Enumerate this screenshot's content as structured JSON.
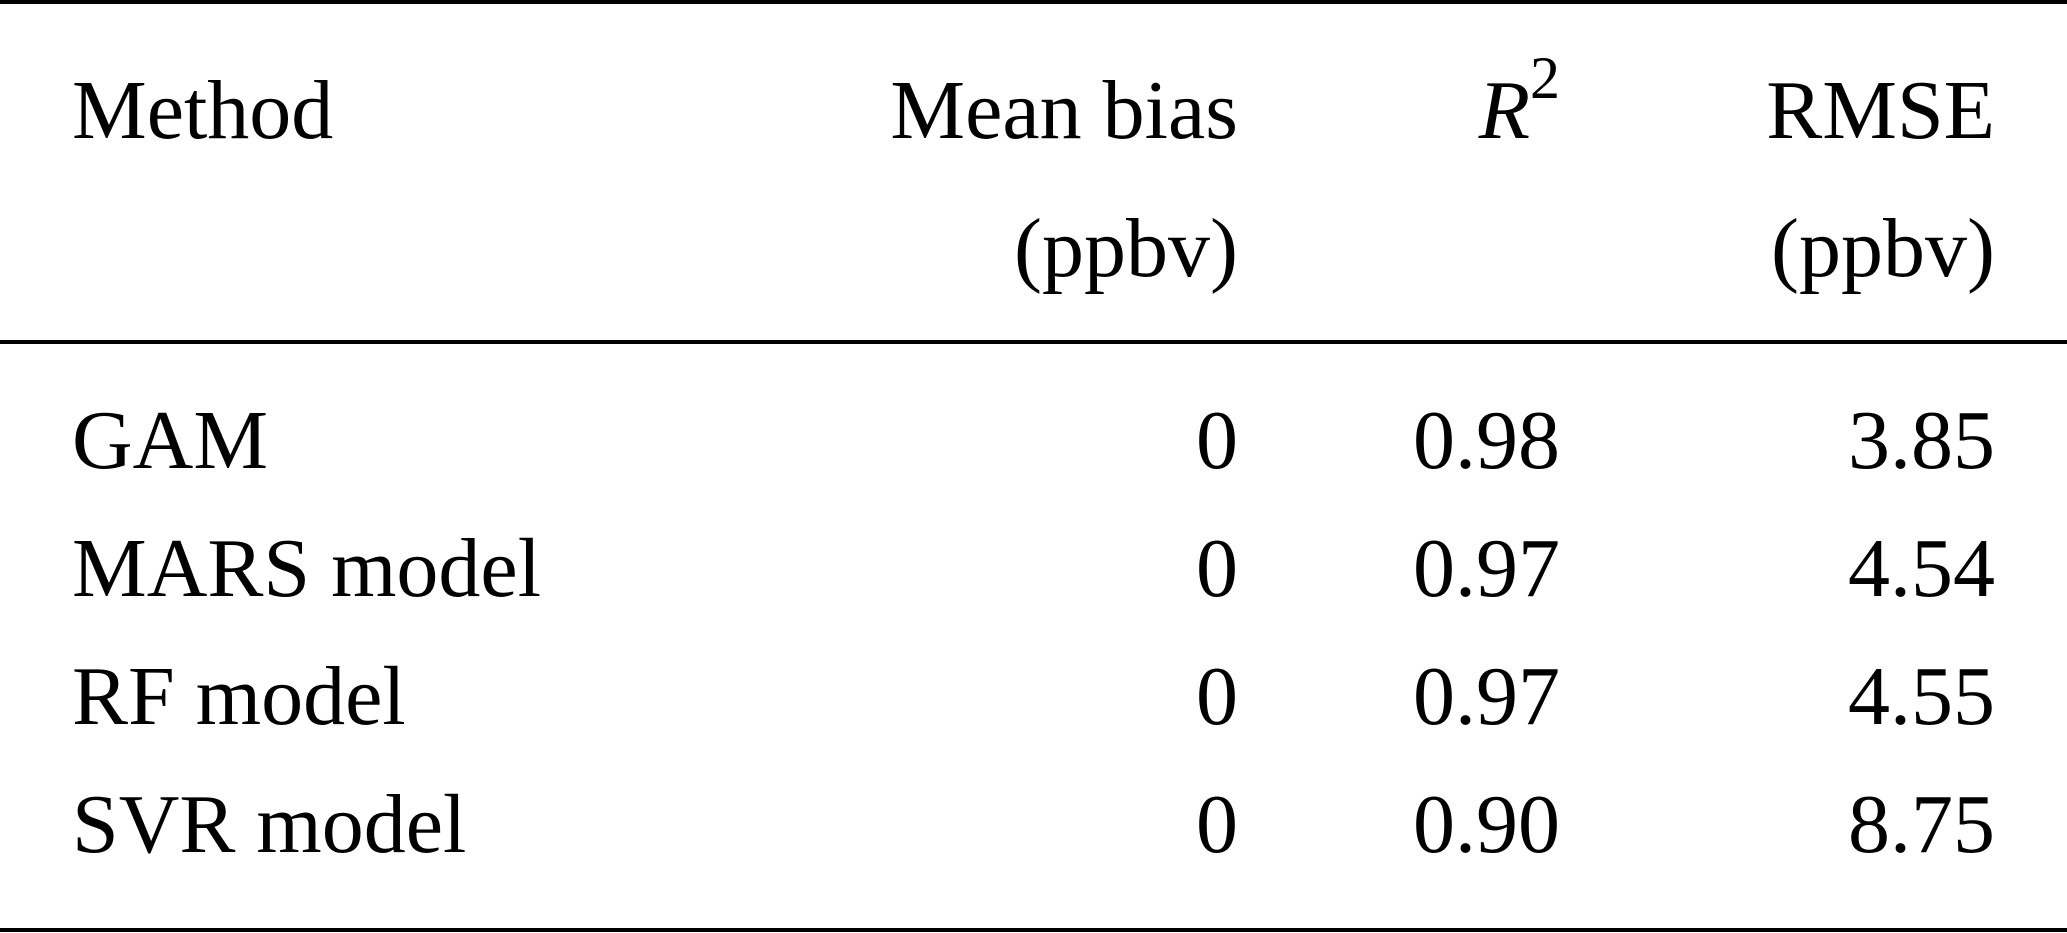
{
  "table": {
    "header": [
      {
        "lines": [
          "Method"
        ]
      },
      {
        "lines": [
          "Mean bias",
          "(ppbv)"
        ]
      },
      {
        "symbol": "R",
        "superscript": "2"
      },
      {
        "lines": [
          "RMSE",
          "(ppbv)"
        ]
      }
    ],
    "rows": [
      [
        "GAM",
        "0",
        "0.98",
        "3.85"
      ],
      [
        "MARS model",
        "0",
        "0.97",
        "4.54"
      ],
      [
        "RF model",
        "0",
        "0.97",
        "4.55"
      ],
      [
        "SVR model",
        "0",
        "0.90",
        "8.75"
      ]
    ]
  }
}
